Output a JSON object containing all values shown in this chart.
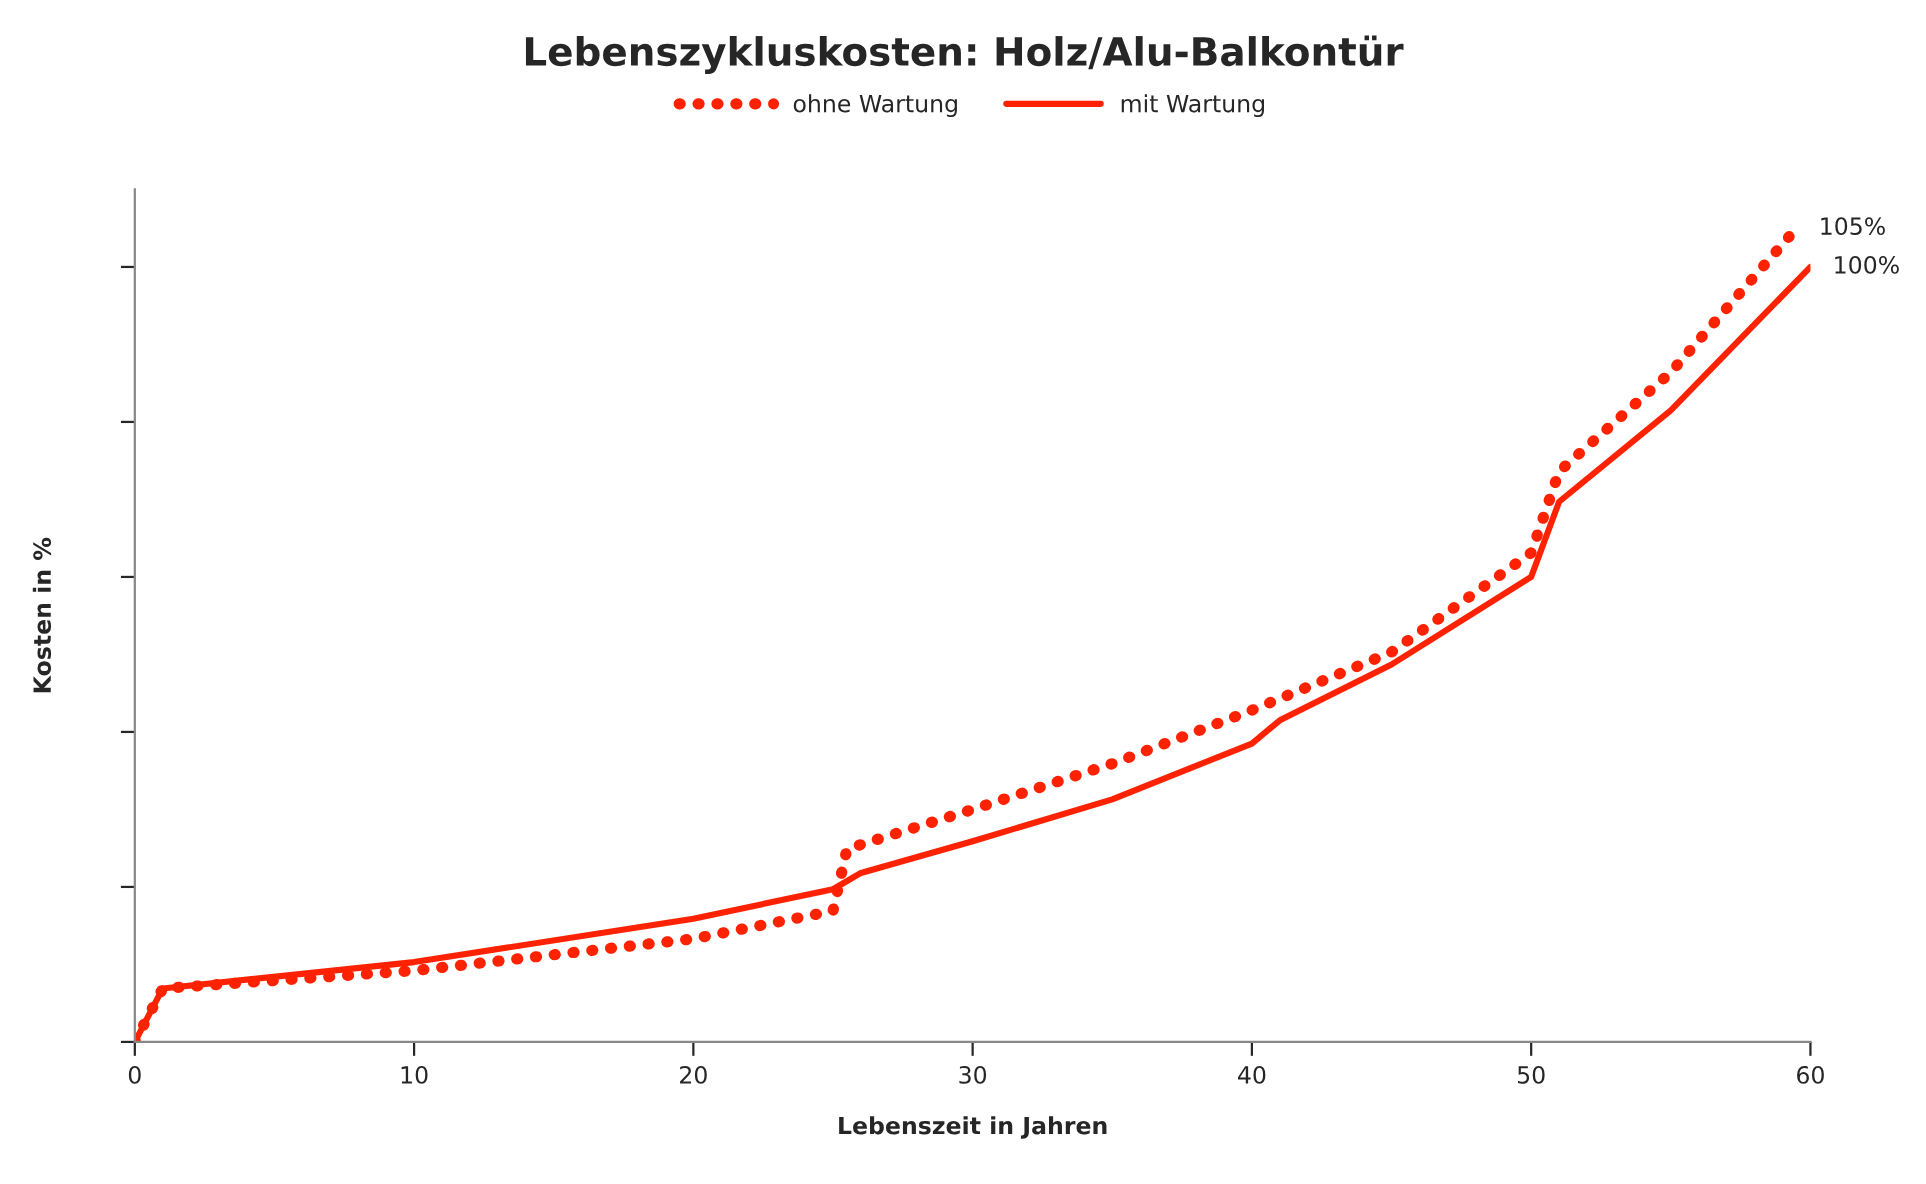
{
  "chart_data": {
    "type": "line",
    "title": "Lebenszykluskosten: Holz/Alu-Balkontür",
    "xlabel": "Lebenszeit in Jahren",
    "ylabel": "Kosten in %",
    "xlim": [
      0,
      60
    ],
    "xticks": [
      0,
      10,
      20,
      30,
      40,
      50,
      60
    ],
    "ylim": [
      0,
      110
    ],
    "yticks": [
      {
        "value": 0,
        "label": null
      },
      {
        "value": 20,
        "label": null
      },
      {
        "value": 40,
        "label": null
      },
      {
        "value": 60,
        "label": null
      },
      {
        "value": 80,
        "label": null
      },
      {
        "value": 100,
        "label": null
      }
    ],
    "grid": false,
    "legend": "top",
    "marker": "none",
    "series": [
      {
        "name": "ohne Wartung",
        "color": "#ff2200",
        "line_style": "dotted",
        "x": [
          0,
          1,
          10,
          20,
          25,
          25.5,
          30,
          35,
          40,
          45,
          50,
          51,
          55,
          59.5
        ],
        "values": [
          0,
          6.9,
          9.2,
          13.3,
          16.9,
          24.9,
          30,
          35.9,
          42.8,
          50.3,
          63.1,
          73.6,
          86.4,
          105
        ],
        "value_labels": [
          null,
          null,
          null,
          null,
          null,
          null,
          null,
          null,
          null,
          null,
          null,
          null,
          null,
          "105%"
        ]
      },
      {
        "name": "mit Wartung",
        "color": "#ff2200",
        "line_style": "solid",
        "x": [
          0,
          1,
          10,
          20,
          25,
          26,
          30,
          35,
          40,
          41,
          45,
          50,
          51,
          55,
          60
        ],
        "values": [
          0,
          6.9,
          10.3,
          15.9,
          19.7,
          21.8,
          25.9,
          31.3,
          38.5,
          41.5,
          48.7,
          60,
          69.7,
          81.5,
          100
        ],
        "value_labels": [
          null,
          null,
          null,
          null,
          null,
          null,
          null,
          null,
          null,
          null,
          null,
          null,
          null,
          null,
          "100%"
        ]
      }
    ]
  }
}
